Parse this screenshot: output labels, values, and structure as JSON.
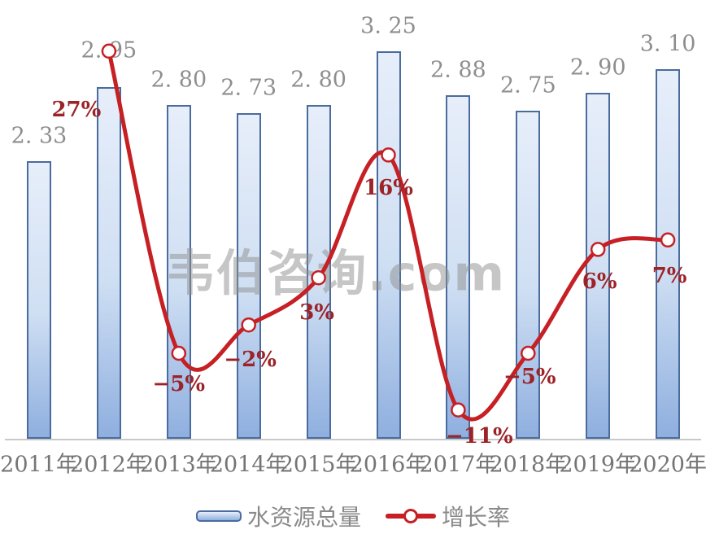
{
  "watermark": "韦伯咨询.com",
  "legend": {
    "bar_label": "水资源总量",
    "line_label": "增长率"
  },
  "colors": {
    "bar_fill_top": "#e7eefa",
    "bar_fill_mid": "#cfdff3",
    "bar_fill_bottom": "#8fafdf",
    "bar_border": "#4a6b9d",
    "line": "#c62025",
    "marker_fill": "#ffffff",
    "percent_text": "#9c2328",
    "value_text": "#8e8e8e",
    "axis_text": "#757575",
    "legend_text": "#8a8a8a",
    "axis_line": "#c8c8c8",
    "watermark_text": "#8f8f8f"
  },
  "chart_data": {
    "type": "combo_bar_line",
    "categories": [
      "2011年",
      "2012年",
      "2013年",
      "2014年",
      "2015年",
      "2016年",
      "2017年",
      "2018年",
      "2019年",
      "2020年"
    ],
    "series": [
      {
        "name": "水资源总量",
        "type": "bar",
        "values": [
          2.33,
          2.95,
          2.8,
          2.73,
          2.8,
          3.25,
          2.88,
          2.75,
          2.9,
          3.1
        ],
        "labels": [
          "2. 33",
          "2. 95",
          "2. 80",
          "2. 73",
          "2. 80",
          "3. 25",
          "2. 88",
          "2. 75",
          "2. 90",
          "3. 10"
        ]
      },
      {
        "name": "增长率",
        "type": "line",
        "values_pct": [
          null,
          27,
          -5,
          -2,
          3,
          16,
          -11,
          -5,
          6,
          7
        ],
        "labels": [
          null,
          "27%",
          "−5%",
          "−2%",
          "3%",
          "16%",
          "−11%",
          "−5%",
          "6%",
          "7%"
        ]
      }
    ],
    "layout_hints": {
      "value_axes_visible": false,
      "grid": false,
      "legend_position": "bottom",
      "bar_axis_min": 0,
      "line_axis_unit": "percent"
    }
  }
}
